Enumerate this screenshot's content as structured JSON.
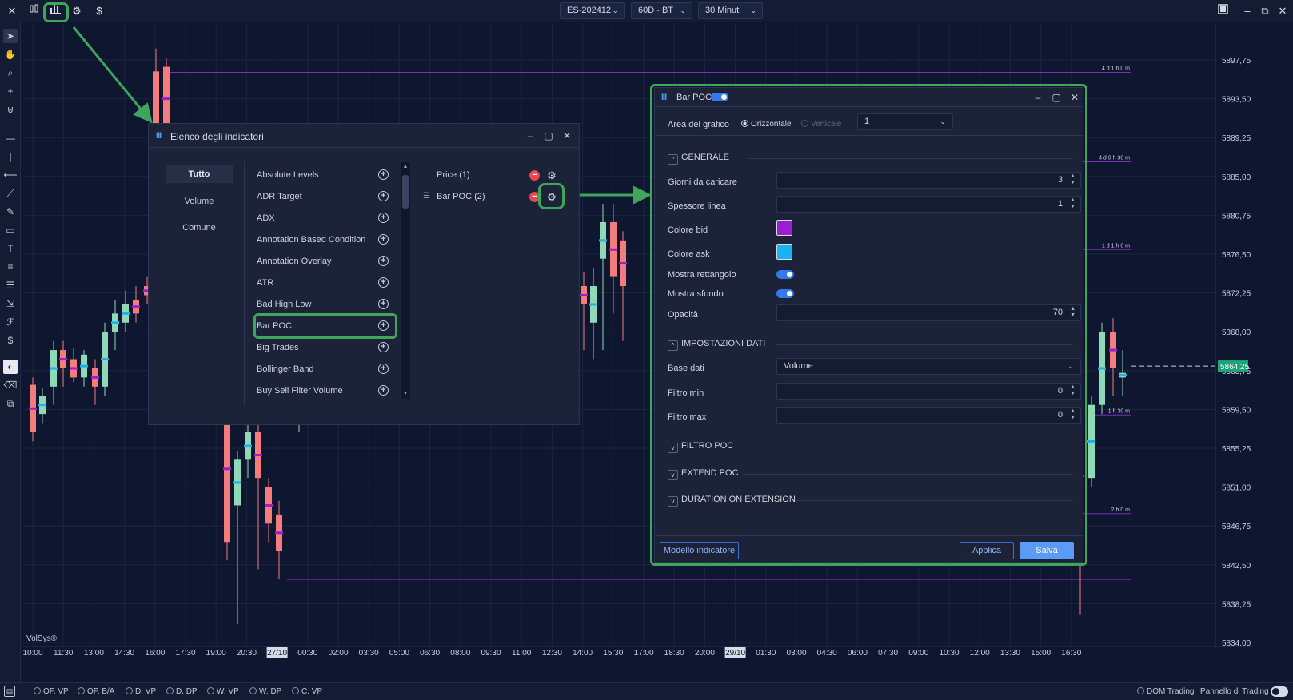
{
  "toolbar": {
    "symbol": "ES-202412",
    "template": "60D - BT",
    "timeframe": "30 Minuti"
  },
  "chart": {
    "price_ticks": [
      "5897,75",
      "5893,50",
      "5889,25",
      "5885,00",
      "5880,75",
      "5876,50",
      "5872,25",
      "5868,00",
      "5863,75",
      "5859,50",
      "5855,25",
      "5851,00",
      "5846,75",
      "5842,50",
      "5838,25",
      "5834,00"
    ],
    "current_price": "5864,25",
    "time_ticks": [
      "10:00",
      "11:30",
      "13:00",
      "14:30",
      "16:00",
      "17:30",
      "19:00",
      "20:30",
      "27/10",
      "00:30",
      "02:00",
      "03:30",
      "05:00",
      "06:30",
      "08:00",
      "09:30",
      "11:00",
      "12:30",
      "14:00",
      "15:30",
      "17:00",
      "18:30",
      "20:00",
      "29/10",
      "01:30",
      "03:00",
      "04:30",
      "06:00",
      "07:30",
      "09:00",
      "10:30",
      "12:00",
      "13:30",
      "15:00",
      "16:30"
    ],
    "level_labels": [
      "4 d 1 h 0 m",
      "4 d 0 h 30 m",
      "1 d 1 h 0 m",
      "1 h 30 m",
      "2 h 0 m"
    ],
    "watermark": "VolSys®"
  },
  "bottom": {
    "left_items": [
      "OF. VP",
      "OF. B/A",
      "D. VP",
      "D. DP",
      "W. VP",
      "W. DP",
      "C. VP"
    ],
    "dom_trading": "DOM Trading",
    "trading_panel": "Pannello di Trading"
  },
  "indicators_dialog": {
    "title": "Elenco degli indicatori",
    "tabs": [
      "Tutto",
      "Volume",
      "Comune"
    ],
    "items": [
      "Absolute Levels",
      "ADR Target",
      "ADX",
      "Annotation Based Condition",
      "Annotation Overlay",
      "ATR",
      "Bad High Low",
      "Bar POC",
      "Big Trades",
      "Bollinger Band",
      "Buy Sell Filter Volume"
    ],
    "active": [
      "Price (1)",
      "Bar POC (2)"
    ]
  },
  "settings_dialog": {
    "title": "Bar POC",
    "area_label": "Area del grafico",
    "orient_h": "Orizzontale",
    "orient_v": "Verticale",
    "area_value": "1",
    "sec_general": "GENERALE",
    "days_label": "Giorni da caricare",
    "days_value": "3",
    "line_label": "Spessore linea",
    "line_value": "1",
    "bid_label": "Colore bid",
    "ask_label": "Colore ask",
    "rect_label": "Mostra rettangolo",
    "bg_label": "Mostra sfondo",
    "opacity_label": "Opacità",
    "opacity_value": "70",
    "sec_data": "IMPOSTAZIONI DATI",
    "base_label": "Base dati",
    "base_value": "Volume",
    "fmin_label": "Filtro min",
    "fmin_value": "0",
    "fmax_label": "Filtro max",
    "fmax_value": "0",
    "sec_filter": "FILTRO POC",
    "sec_extend": "EXTEND POC",
    "sec_duration": "DURATION ON EXTENSION",
    "btn_model": "Modello indicatore",
    "btn_apply": "Applica",
    "btn_save": "Salva"
  },
  "colors": {
    "bid": "#9b1fd0",
    "ask": "#19b4f0",
    "bull": "#8fd8b8",
    "bear": "#f47c7c",
    "highlight": "#3fa55a"
  }
}
